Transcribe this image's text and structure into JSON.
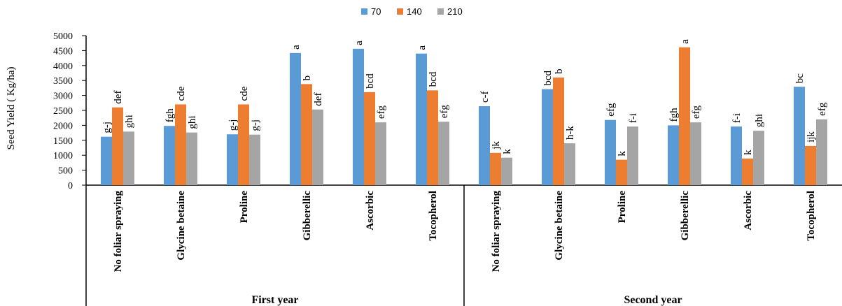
{
  "chart_data": {
    "type": "bar",
    "ylabel": "Seed Yield ( Kg/ha)",
    "ylim": [
      0,
      5000
    ],
    "yticks": [
      0,
      500,
      1000,
      1500,
      2000,
      2500,
      3000,
      3500,
      4000,
      4500,
      5000
    ],
    "legend_position": "top-center",
    "colors": {
      "70": "#5B9BD5",
      "140": "#ED7D31",
      "210": "#A5A5A5"
    },
    "groups": [
      {
        "name": "First year",
        "categories": [
          "No foliar spraying",
          "Glycine betaine",
          "Proline",
          "Gibberellic",
          "Ascorbic",
          "Tocopherol"
        ]
      },
      {
        "name": "Second year",
        "categories": [
          "No foliar spraying",
          "Glycine betaine",
          "Proline",
          "Gibberellic",
          "Ascorbic",
          "Tocopherol"
        ]
      }
    ],
    "series": [
      {
        "name": "70",
        "values": [
          1620,
          1980,
          1700,
          4420,
          4560,
          4400,
          2640,
          3210,
          2180,
          2000,
          1960,
          3290
        ],
        "labels": [
          "g-j",
          "fgh",
          "g-j",
          "a",
          "a",
          "a",
          "c-f",
          "bcd",
          "efg",
          "fgh",
          "f-i",
          "bc"
        ]
      },
      {
        "name": "140",
        "values": [
          2600,
          2700,
          2700,
          3380,
          3110,
          3170,
          1080,
          3600,
          850,
          4610,
          890,
          1310
        ],
        "labels": [
          "def",
          "cde",
          "cde",
          "b",
          "bcd",
          "bcd",
          "jk",
          "b",
          "k",
          "a",
          "k",
          "ijk"
        ]
      },
      {
        "name": "210",
        "values": [
          1790,
          1760,
          1690,
          2530,
          2100,
          2120,
          920,
          1400,
          1960,
          2100,
          1820,
          2200
        ],
        "labels": [
          "ghi",
          "ghi",
          "g-j",
          "def",
          "efg",
          "efg",
          "k",
          "h-k",
          "f-i",
          "efg",
          "ghi",
          "efg"
        ]
      }
    ]
  }
}
